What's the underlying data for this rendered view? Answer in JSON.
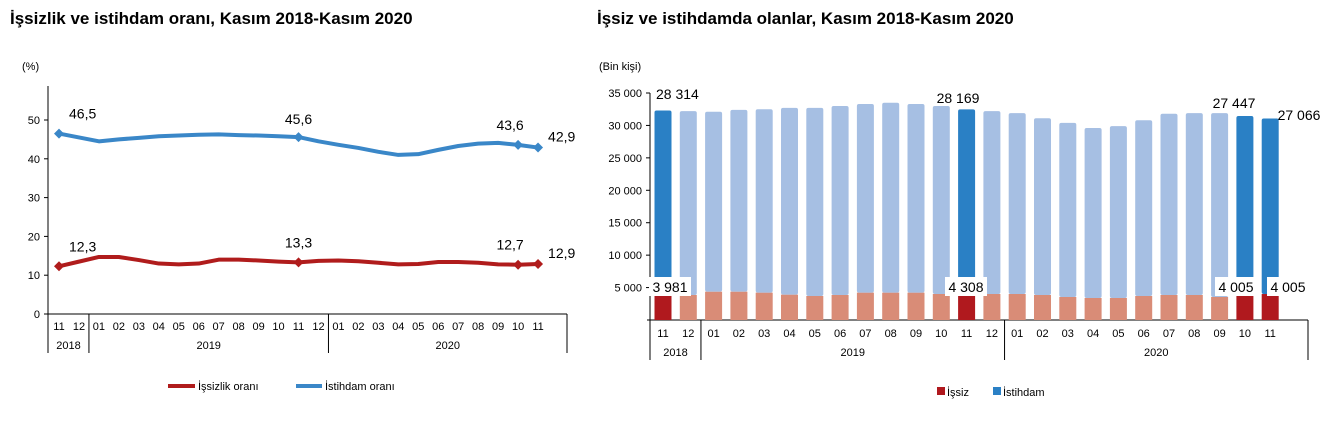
{
  "chart_data": [
    {
      "type": "line",
      "title": "İşsizlik ve istihdam oranı, Kasım 2018-Kasım 2020",
      "ylabel": "(%)",
      "ylim": [
        0,
        58
      ],
      "yticks": [
        "0",
        "10",
        "20",
        "30",
        "40",
        "50"
      ],
      "categories": [
        "11",
        "12",
        "01",
        "02",
        "03",
        "04",
        "05",
        "06",
        "07",
        "08",
        "09",
        "10",
        "11",
        "12",
        "01",
        "02",
        "03",
        "04",
        "05",
        "06",
        "07",
        "08",
        "09",
        "10",
        "11"
      ],
      "years": [
        {
          "label": "2018",
          "span": 2
        },
        {
          "label": "2019",
          "span": 12
        },
        {
          "label": "2020",
          "span": 11
        }
      ],
      "grid": false,
      "legend": "bottom",
      "series": [
        {
          "name": "İşsizlik oranı",
          "color": "#b01c1c",
          "values": [
            12.3,
            13.5,
            14.7,
            14.7,
            13.9,
            13.0,
            12.8,
            13.0,
            14.0,
            14.0,
            13.8,
            13.5,
            13.3,
            13.7,
            13.8,
            13.6,
            13.2,
            12.8,
            12.9,
            13.4,
            13.4,
            13.2,
            12.8,
            12.7,
            12.9
          ],
          "labels": [
            {
              "i": 0,
              "text": "12,3"
            },
            {
              "i": 12,
              "text": "13,3"
            },
            {
              "i": 23,
              "text": "12,7"
            },
            {
              "i": 24,
              "text": "12,9"
            }
          ]
        },
        {
          "name": "İstihdam oranı",
          "color": "#3a87c8",
          "values": [
            46.5,
            45.5,
            44.5,
            45.0,
            45.4,
            45.8,
            46.0,
            46.2,
            46.3,
            46.1,
            46.0,
            45.8,
            45.6,
            44.5,
            43.6,
            42.8,
            41.8,
            41.0,
            41.2,
            42.3,
            43.3,
            43.9,
            44.1,
            43.6,
            42.9
          ],
          "labels": [
            {
              "i": 0,
              "text": "46,5"
            },
            {
              "i": 12,
              "text": "45,6"
            },
            {
              "i": 23,
              "text": "43,6"
            },
            {
              "i": 24,
              "text": "42,9"
            }
          ]
        }
      ]
    },
    {
      "type": "bar",
      "stacked": true,
      "title": "İşsiz ve istihdamda olanlar, Kasım 2018-Kasım 2020",
      "ylabel": "(Bin kişi)",
      "ylim": [
        0,
        35000
      ],
      "yticks": [
        "5 000",
        "10 000",
        "15 000",
        "20 000",
        "25 000",
        "30 000",
        "35 000"
      ],
      "categories": [
        "11",
        "12",
        "01",
        "02",
        "03",
        "04",
        "05",
        "06",
        "07",
        "08",
        "09",
        "10",
        "11",
        "12",
        "01",
        "02",
        "03",
        "04",
        "05",
        "06",
        "07",
        "08",
        "09",
        "10",
        "11"
      ],
      "years": [
        {
          "label": "2018",
          "span": 2
        },
        {
          "label": "2019",
          "span": 12
        },
        {
          "label": "2020",
          "span": 11
        }
      ],
      "highlighted": [
        0,
        12,
        23,
        24
      ],
      "legend": "bottom",
      "series": [
        {
          "name": "İşsiz",
          "color": "#b0191e",
          "muted_color": "#d98c77",
          "values": [
            3981,
            3860,
            4370,
            4370,
            4220,
            3910,
            3700,
            3860,
            4220,
            4220,
            4220,
            4010,
            4308,
            4010,
            4010,
            3860,
            3550,
            3400,
            3400,
            3700,
            3860,
            3860,
            3550,
            4005,
            4005
          ],
          "labels": [
            {
              "i": 0,
              "text": "3 981"
            },
            {
              "i": 12,
              "text": "4 308"
            },
            {
              "i": 23,
              "text": "4 005"
            },
            {
              "i": 24,
              "text": "4 005"
            }
          ]
        },
        {
          "name": "İstihdam",
          "color": "#2a80c5",
          "muted_color": "#a6bfe3",
          "values": [
            28314,
            28340,
            27730,
            28030,
            28280,
            28790,
            29000,
            29140,
            29080,
            29280,
            29080,
            28990,
            28169,
            28190,
            27890,
            27240,
            26850,
            26200,
            26500,
            27100,
            27940,
            28040,
            28350,
            27447,
            27066
          ],
          "labels": [
            {
              "i": 0,
              "text": "28 314"
            },
            {
              "i": 12,
              "text": "28 169"
            },
            {
              "i": 23,
              "text": "27 447"
            },
            {
              "i": 24,
              "text": "27 066"
            }
          ]
        }
      ]
    }
  ]
}
